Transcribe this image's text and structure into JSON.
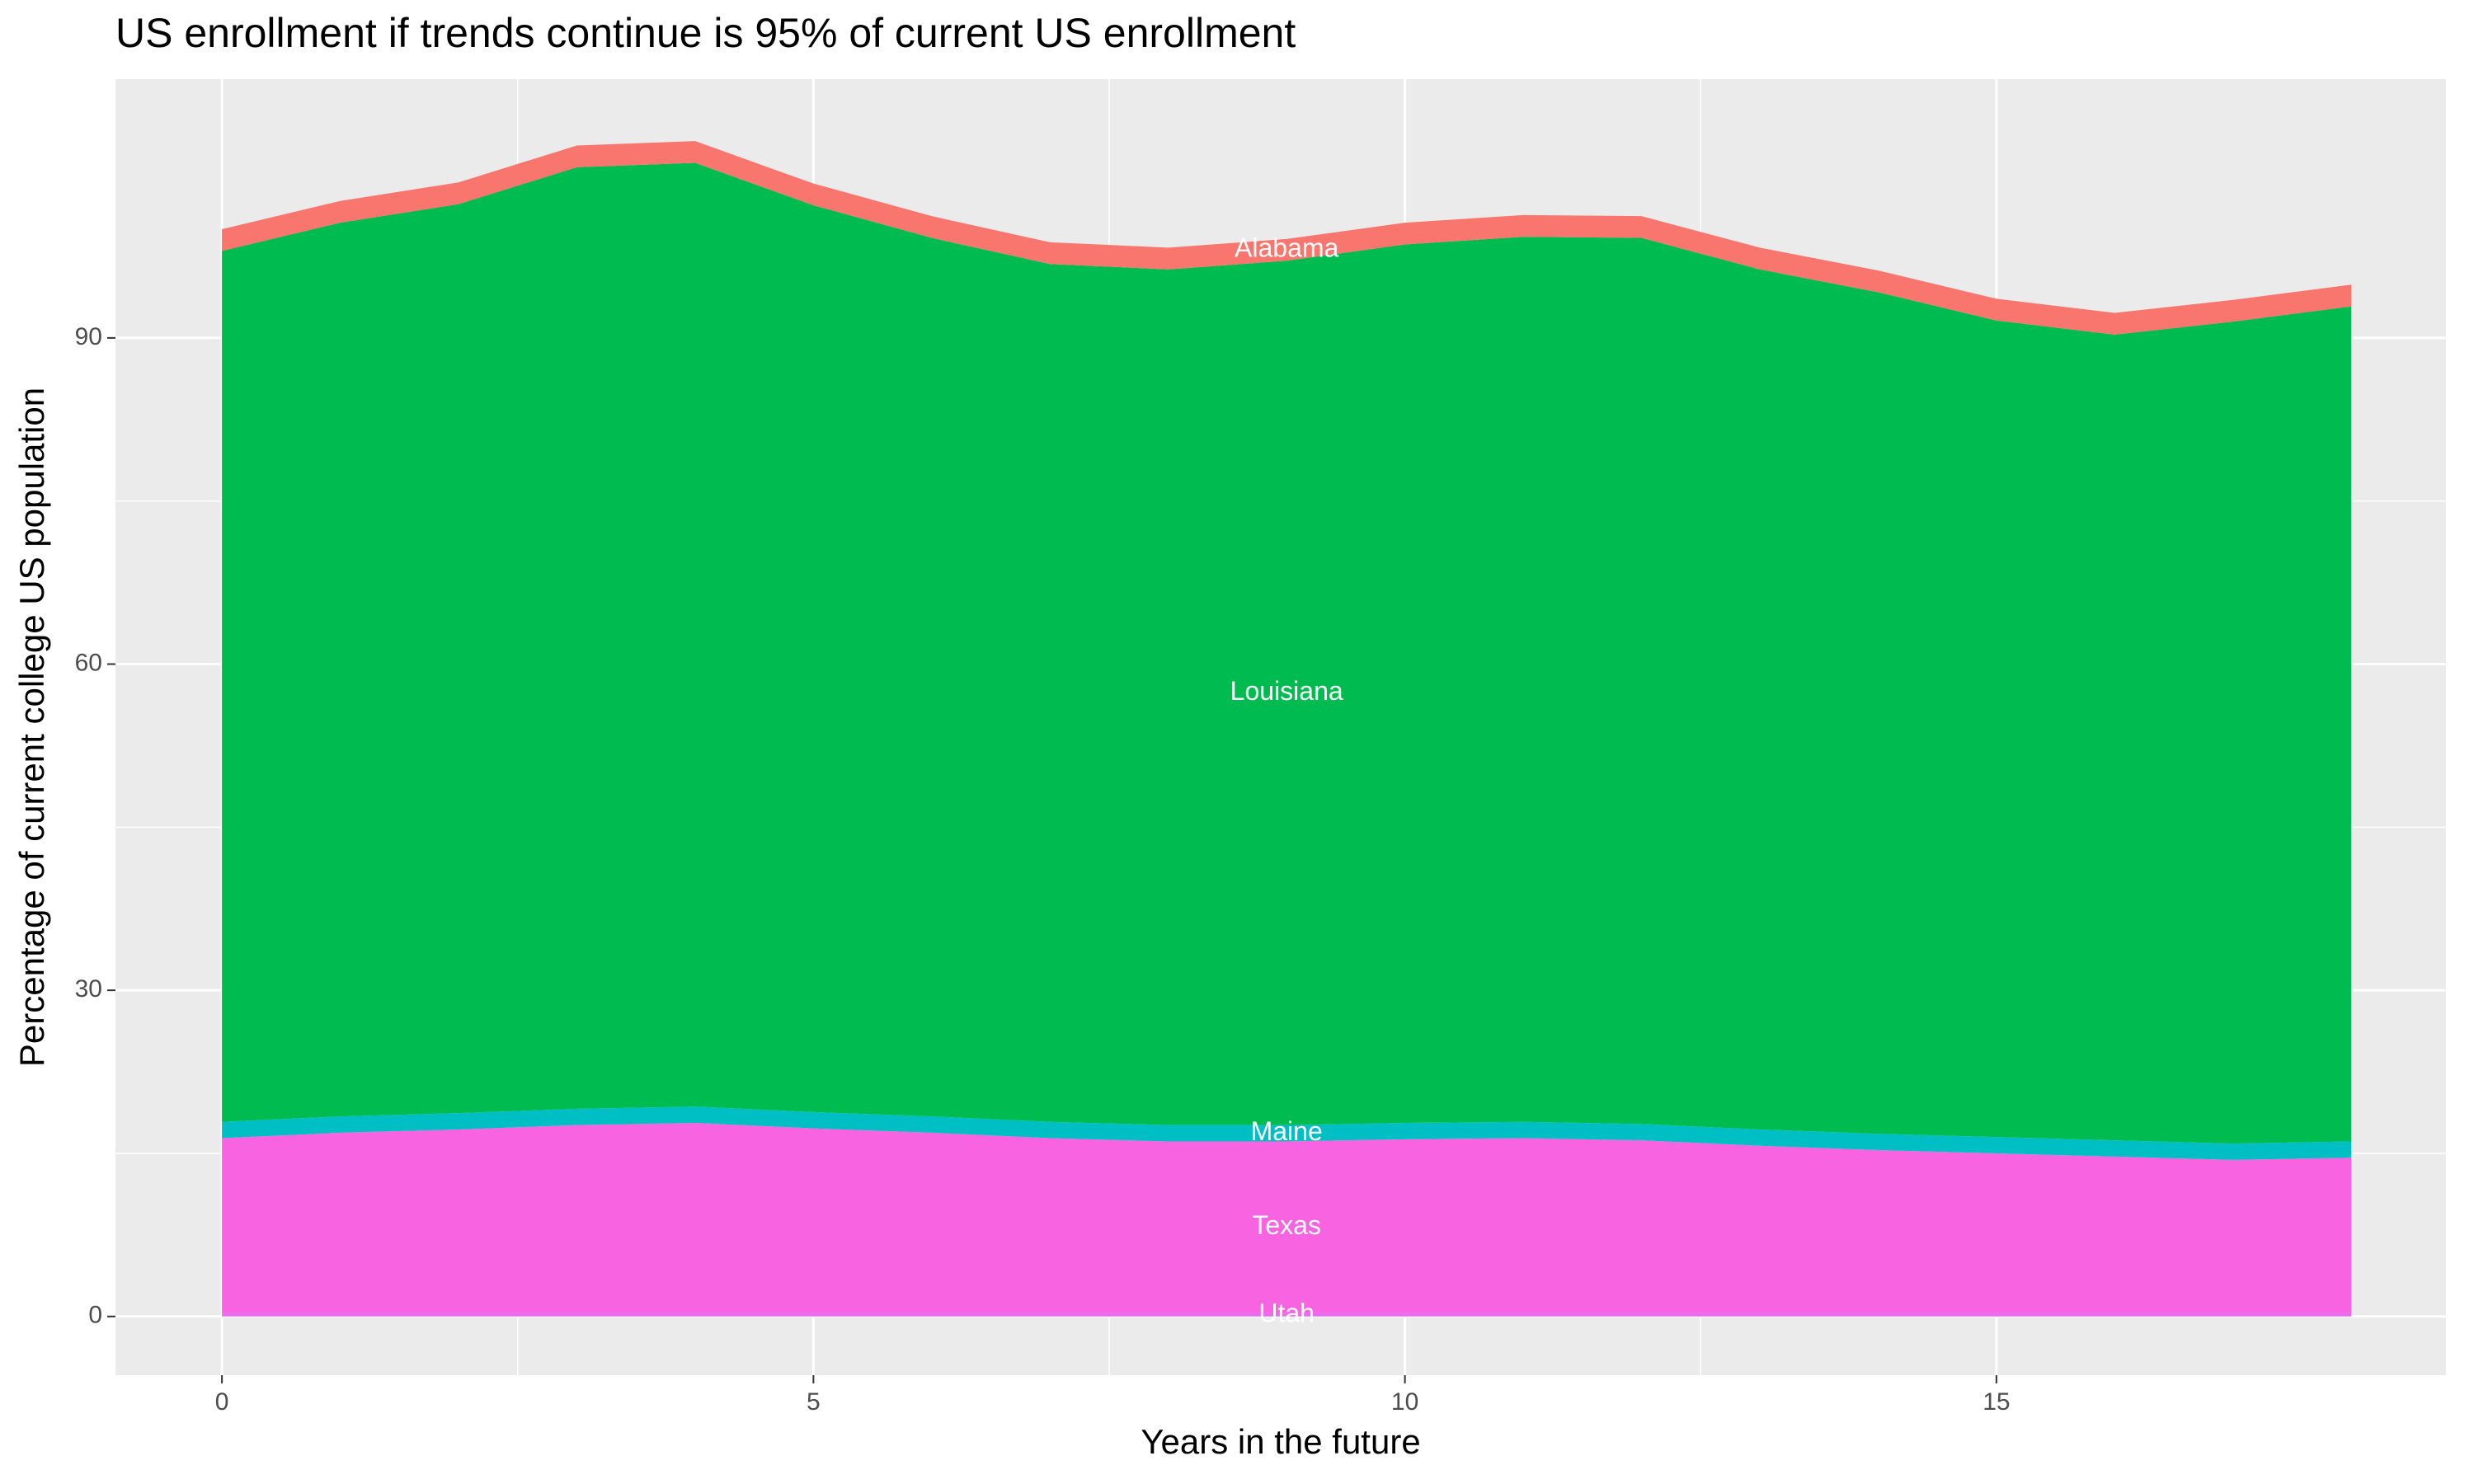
{
  "chart_data": {
    "type": "stacked_area",
    "title": "US enrollment if trends continue is 95% of current US enrollment",
    "x_label": "Years in the future",
    "y_label": "Percentage of current college US population",
    "x": [
      0,
      1,
      2,
      3,
      4,
      5,
      6,
      7,
      8,
      9,
      10,
      11,
      12,
      13,
      14,
      15,
      16,
      17,
      18
    ],
    "series": [
      {
        "name": "Utah",
        "color": "#e76bf3",
        "values": [
          0.3,
          0.3,
          0.3,
          0.3,
          0.3,
          0.3,
          0.3,
          0.3,
          0.3,
          0.3,
          0.3,
          0.3,
          0.3,
          0.3,
          0.3,
          0.3,
          0.3,
          0.3,
          0.3
        ]
      },
      {
        "name": "Texas",
        "color": "#f763e0",
        "values": [
          16.1,
          16.6,
          16.9,
          17.3,
          17.5,
          17.0,
          16.6,
          16.1,
          15.8,
          15.8,
          16.0,
          16.1,
          15.9,
          15.4,
          15.0,
          14.7,
          14.4,
          14.1,
          14.3
        ]
      },
      {
        "name": "Maine",
        "color": "#00bfc4",
        "values": [
          1.5,
          1.5,
          1.5,
          1.5,
          1.5,
          1.5,
          1.5,
          1.5,
          1.5,
          1.5,
          1.5,
          1.5,
          1.5,
          1.5,
          1.5,
          1.5,
          1.5,
          1.5,
          1.5
        ]
      },
      {
        "name": "Louisiana",
        "color": "#00bc50",
        "values": [
          80.1,
          82.2,
          83.6,
          86.6,
          86.8,
          83.4,
          80.8,
          78.9,
          78.7,
          79.5,
          80.8,
          81.4,
          81.5,
          79.1,
          77.4,
          75.1,
          74.1,
          75.6,
          76.8
        ]
      },
      {
        "name": "Alabama",
        "color": "#f8766d",
        "values": [
          2.0,
          2.0,
          2.0,
          2.0,
          2.0,
          2.0,
          2.0,
          2.0,
          2.0,
          2.0,
          2.0,
          2.0,
          2.0,
          2.0,
          2.0,
          2.0,
          2.0,
          2.0,
          2.0
        ]
      }
    ],
    "xlim": [
      -0.9,
      18.8
    ],
    "ylim": [
      -5.4,
      113.8
    ],
    "xticks": [
      0,
      5,
      10,
      15
    ],
    "yticks": [
      0,
      30,
      60,
      90
    ],
    "grid": true
  }
}
